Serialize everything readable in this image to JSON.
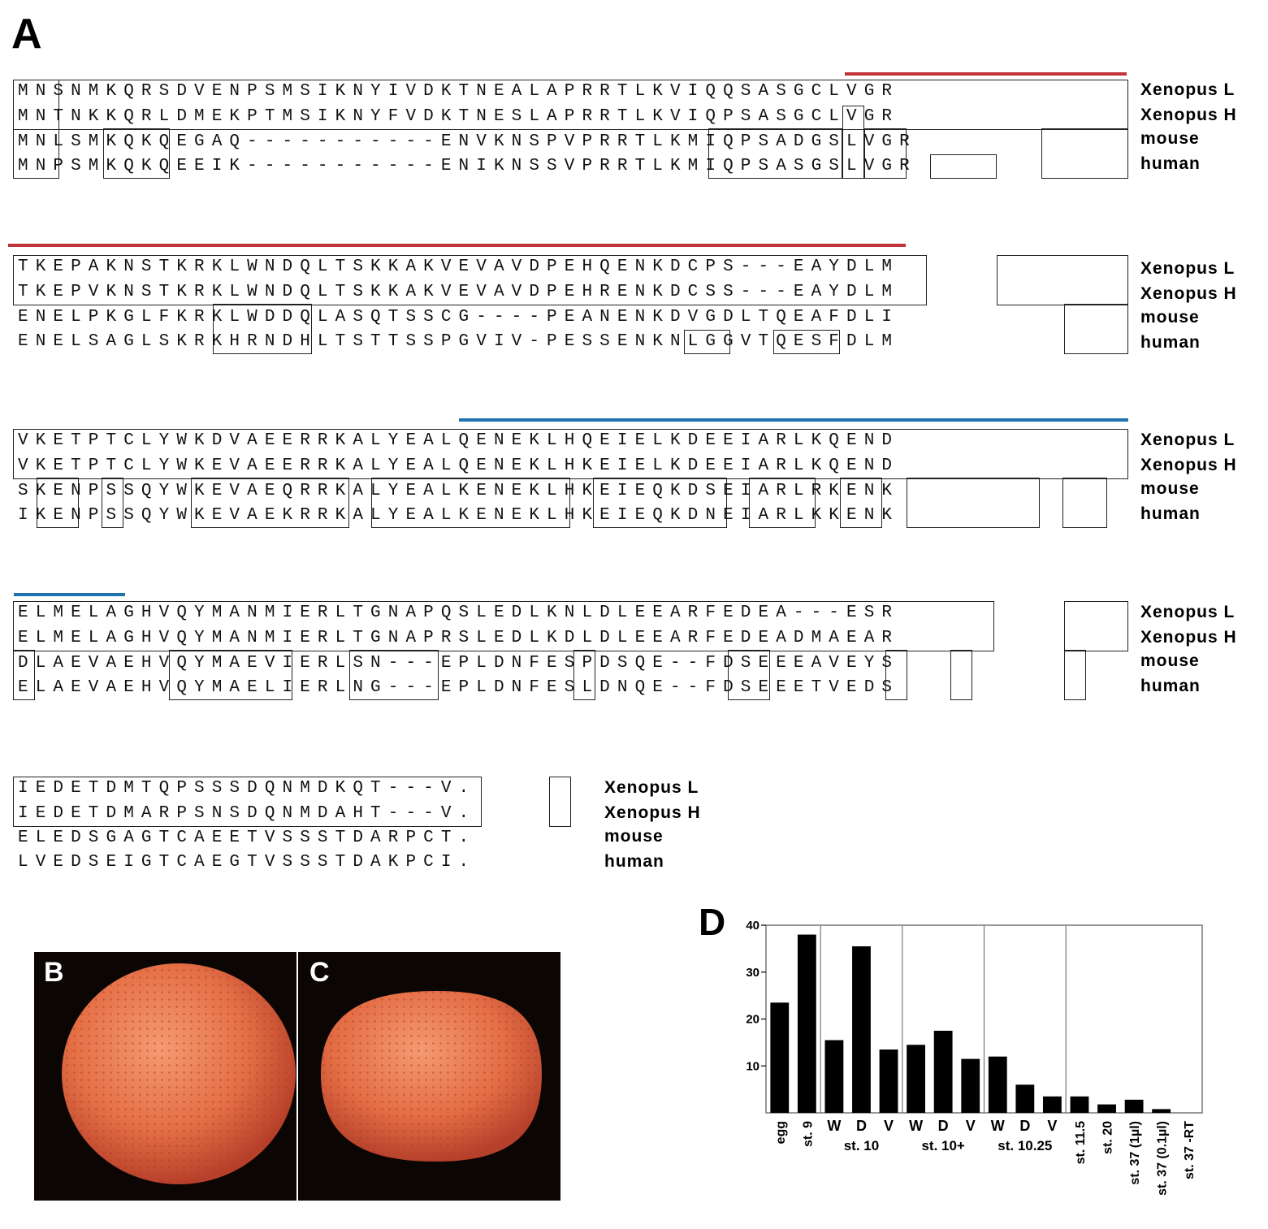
{
  "panel_a": {
    "label": "A",
    "species": [
      "Xenopus L",
      "Xenopus H",
      "mouse",
      "human"
    ],
    "blocks": [
      {
        "rows": [
          "MNSNMKQRSDVENPSMSIKNYIVDKTNEALAPRRTLKVIQQSASGCLVGR",
          "MNTNKKQRLDMEKPTMSIKNYFVDKTNESLAPRRTLKVIQPSASGCLVGR",
          "MNLSMKQKQEGAQ-----------ENVKNSPVPRRTLKMIQPSADGSLVGR",
          "MNPSMKQKQEEIK-----------ENIKNSSVPRRTLKMIQPSASGSLVGR"
        ]
      },
      {
        "rows": [
          "TKEPAKNSTKRKLWNDQLTSKKAKVEVAVDPEHQENKDCPS---EAYDLM",
          "TKEPVKNSTKRKLWNDQLTSKKAKVEVAVDPEHRENKDCSS---EAYDLM",
          "ENELPKGLFKRKLWDDQLASQTSSCG----PEANENKDVGDLTQEAFDLI",
          "ENELSAGLSKRKHRNDHLTSTTSSPGVIV-PESSENKNLGGVTQESFDLM"
        ]
      },
      {
        "rows": [
          "VKETPTCLYWKDVAEERRKALYEALQENEKLHQEIELKDEEIARLKQEND",
          "VKETPTCLYWKEVAEERRKALYEALQENEKLHKEIELKDEEIARLKQEND",
          "SKENPSSQYWKEVAEQRRKALYEALKENEKLHKEIEQKDSEIARLRKENK",
          "IKENPSSQYWKEVAEKRRKALYEALKENEKLHKEIEQKDNEIARLKKENK"
        ]
      },
      {
        "rows": [
          "ELMELAGHVQYMANMIERLTGNAPQSLEDLKNLDLEEARFEDEA---ESR",
          "ELMELAGHVQYMANMIERLTGNAPRSLEDLKDLDLEEARFEDEADMAEAR",
          "DLAEVAEHVQYMAEVIERLSN---EPLDNFESPDSQE--FDSEEEAVEYS",
          "ELAEVAEHVQYMAELIERLNG---EPLDNFESLDNQE--FDSEEETVEDS"
        ]
      },
      {
        "rows": [
          "IEDETDMTQPSSSDQNMDKQT---V.",
          "IEDETDMARPSNSDQNMDAHT---V.",
          "ELEDSGAGTCAEETVSSSTDARPCT.",
          "LVEDSEIGTCAEGTVSSSTDAKPCI."
        ]
      }
    ]
  },
  "panel_b": {
    "label": "B"
  },
  "panel_c": {
    "label": "C"
  },
  "panel_d": {
    "label": "D"
  },
  "chart_data": {
    "type": "bar",
    "title": "",
    "xlabel": "",
    "ylabel": "",
    "ylim": [
      0,
      40
    ],
    "yticks": [
      10,
      20,
      30,
      40
    ],
    "grid": false,
    "categories": [
      "egg",
      "st. 9",
      "W",
      "D",
      "V",
      "W",
      "D",
      "V",
      "W",
      "D",
      "V",
      "st. 11.5",
      "st. 20",
      "st. 37 (1µl)",
      "st. 37 (0.1µl)",
      "st. 37 -RT"
    ],
    "values": [
      23.5,
      38,
      15.5,
      35.5,
      13.5,
      14.5,
      17.5,
      11.5,
      12,
      6,
      3.5,
      3.5,
      1.8,
      2.8,
      0.8,
      0
    ],
    "groups": [
      {
        "label": "st. 10",
        "members": [
          "W",
          "D",
          "V"
        ]
      },
      {
        "label": "st. 10+",
        "members": [
          "W",
          "D",
          "V"
        ]
      },
      {
        "label": "st. 10.25",
        "members": [
          "W",
          "D",
          "V"
        ]
      }
    ],
    "bar_color": "#000000"
  }
}
